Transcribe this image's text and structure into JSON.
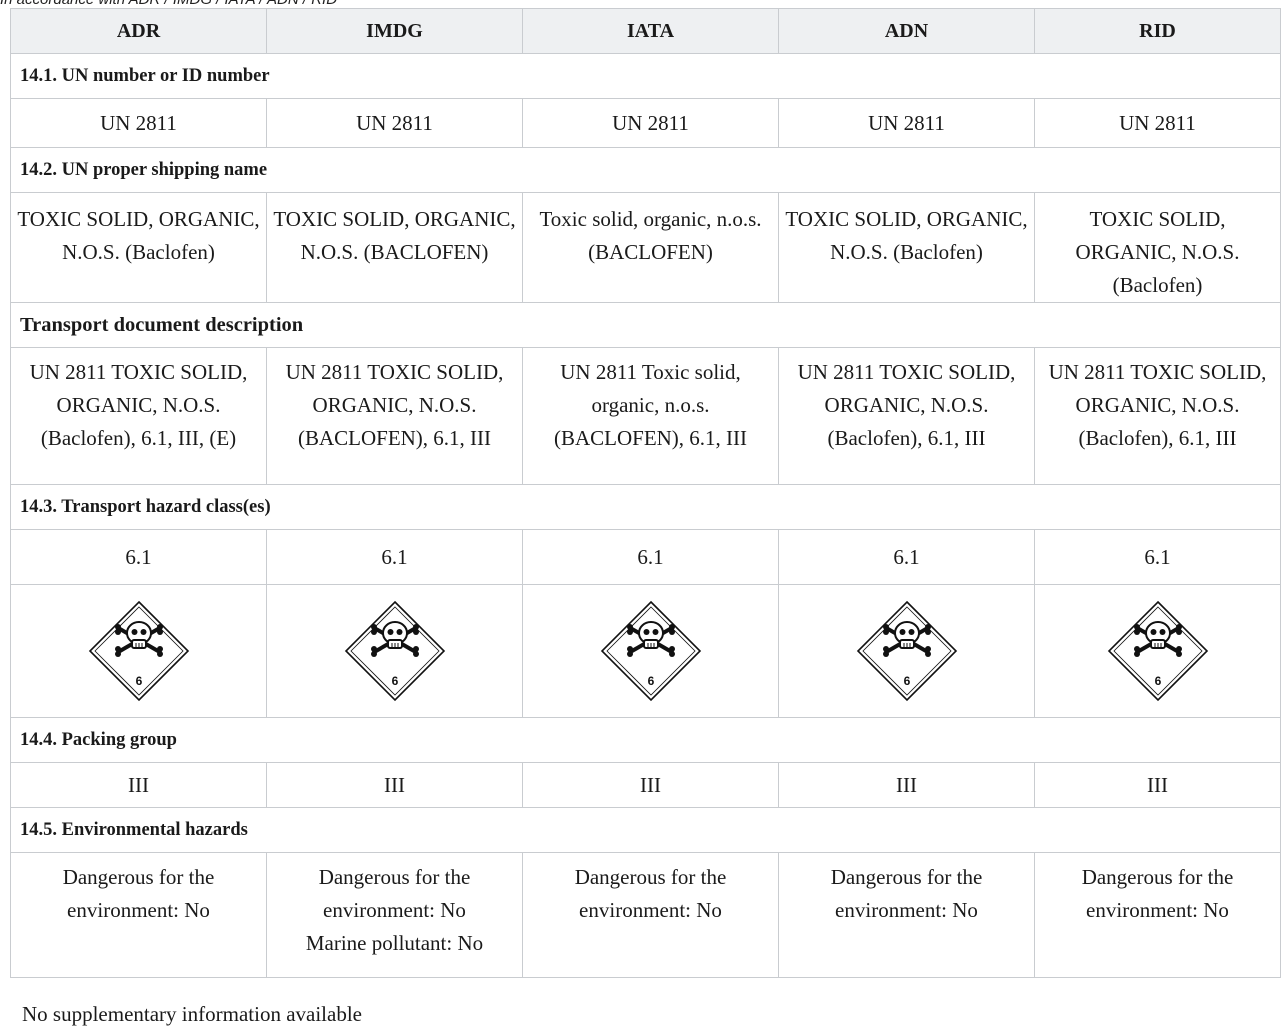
{
  "top_note": "In accordance with ADR / IMDG / IATA / ADN / RID",
  "columns": [
    "ADR",
    "IMDG",
    "IATA",
    "ADN",
    "RID"
  ],
  "sections": {
    "un_number": {
      "title": "14.1. UN number or ID number",
      "values": [
        "UN 2811",
        "UN 2811",
        "UN 2811",
        "UN 2811",
        "UN 2811"
      ]
    },
    "shipping_name": {
      "title": "14.2. UN proper shipping name",
      "values": [
        "TOXIC SOLID, ORGANIC, N.O.S. (Baclofen)",
        "TOXIC SOLID, ORGANIC, N.O.S. (BACLOFEN)",
        "Toxic solid, organic, n.o.s. (BACLOFEN)",
        "TOXIC SOLID, ORGANIC, N.O.S. (Baclofen)",
        "TOXIC SOLID, ORGANIC, N.O.S. (Baclofen)"
      ]
    },
    "transport_document": {
      "title": "Transport document description",
      "values": [
        "UN 2811 TOXIC SOLID, ORGANIC, N.O.S. (Baclofen), 6.1, III, (E)",
        "UN 2811 TOXIC SOLID, ORGANIC, N.O.S. (BACLOFEN), 6.1, III",
        "UN 2811 Toxic solid, organic, n.o.s. (BACLOFEN), 6.1, III",
        "UN 2811 TOXIC SOLID, ORGANIC, N.O.S. (Baclofen), 6.1, III",
        "UN 2811 TOXIC SOLID, ORGANIC, N.O.S. (Baclofen), 6.1, III"
      ]
    },
    "hazard_class": {
      "title": "14.3. Transport hazard class(es)",
      "values": [
        "6.1",
        "6.1",
        "6.1",
        "6.1",
        "6.1"
      ],
      "label_icon": "toxic-skull-crossbones-diamond-icon",
      "label_number": "6"
    },
    "packing_group": {
      "title": "14.4. Packing group",
      "values": [
        "III",
        "III",
        "III",
        "III",
        "III"
      ]
    },
    "environmental": {
      "title": "14.5. Environmental hazards",
      "values": [
        [
          "Dangerous for the environment: No"
        ],
        [
          "Dangerous for the environment: No",
          "Marine pollutant: No"
        ],
        [
          "Dangerous for the environment: No"
        ],
        [
          "Dangerous for the environment: No"
        ],
        [
          "Dangerous for the environment: No"
        ]
      ]
    }
  },
  "supplementary": "No supplementary information available"
}
